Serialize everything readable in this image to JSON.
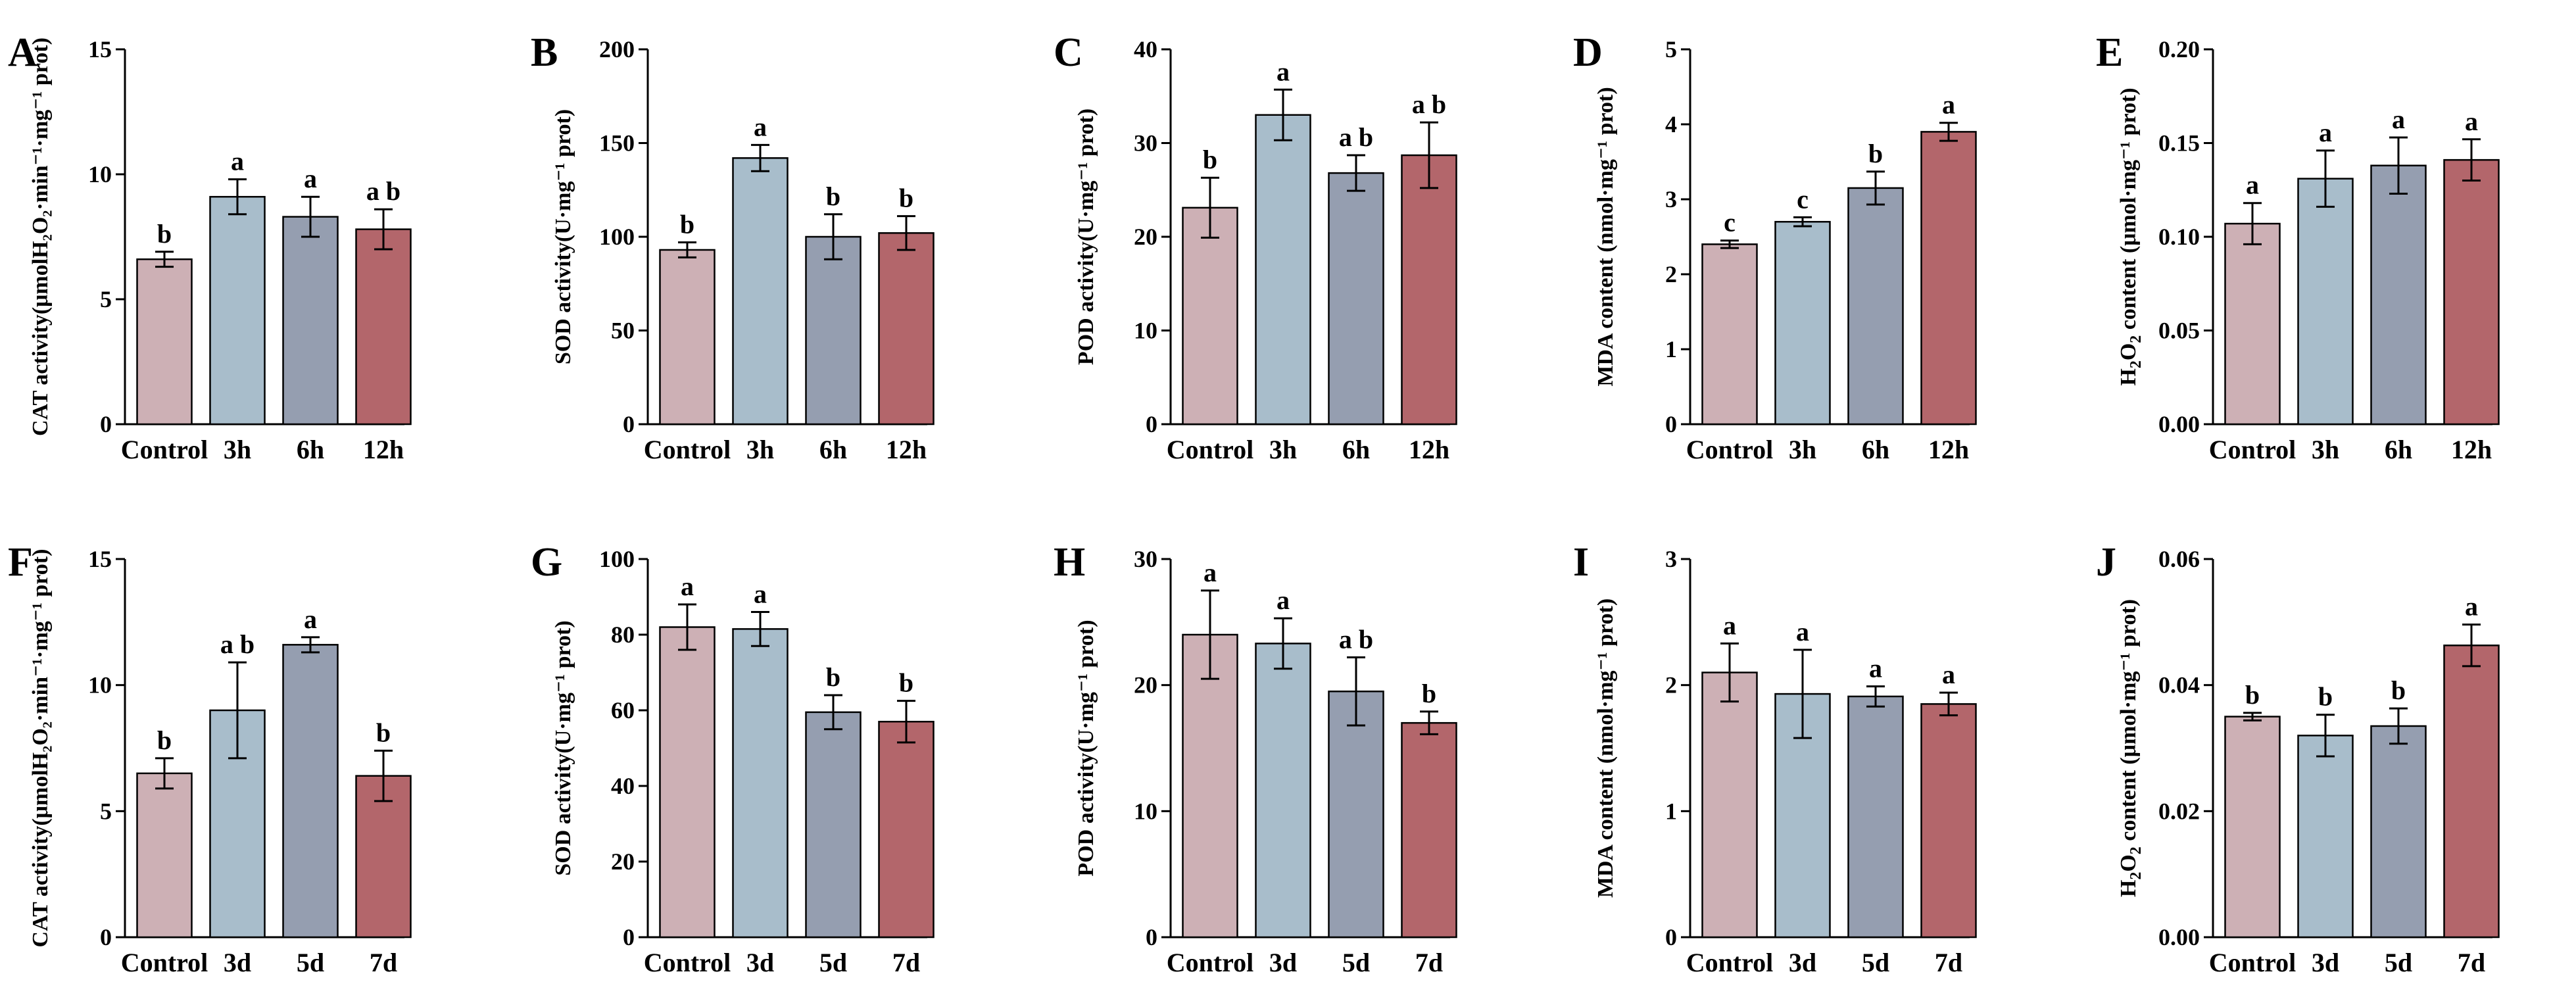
{
  "figure": {
    "colors": [
      "#cdb0b5",
      "#a8bdcb",
      "#959eb0",
      "#b3666b"
    ],
    "edge_color": "#000000"
  },
  "chart_data": [
    {
      "type": "bar",
      "panel": "A",
      "ylabel": "CAT activity(μmolH₂O₂·min⁻¹·mg⁻¹ prot)",
      "categories": [
        "Control",
        "3h",
        "6h",
        "12h"
      ],
      "ylim": [
        0,
        15
      ],
      "yticks": [
        0,
        5,
        10,
        15
      ],
      "ytick_labels": [
        "0",
        "5",
        "10",
        "15"
      ],
      "values": [
        6.6,
        9.1,
        8.3,
        7.8
      ],
      "errors": [
        0.3,
        0.7,
        0.8,
        0.8
      ],
      "significance": [
        "b",
        "a",
        "a",
        "a b"
      ]
    },
    {
      "type": "bar",
      "panel": "B",
      "ylabel": "SOD activity(U·mg⁻¹ prot)",
      "categories": [
        "Control",
        "3h",
        "6h",
        "12h"
      ],
      "ylim": [
        0,
        200
      ],
      "yticks": [
        0,
        50,
        100,
        150,
        200
      ],
      "ytick_labels": [
        "0",
        "50",
        "100",
        "150",
        "200"
      ],
      "values": [
        93,
        142,
        100,
        102
      ],
      "errors": [
        4,
        7,
        12,
        9
      ],
      "significance": [
        "b",
        "a",
        "b",
        "b"
      ]
    },
    {
      "type": "bar",
      "panel": "C",
      "ylabel": "POD activity(U·mg⁻¹ prot)",
      "categories": [
        "Control",
        "3h",
        "6h",
        "12h"
      ],
      "ylim": [
        0,
        40
      ],
      "yticks": [
        0,
        10,
        20,
        30,
        40
      ],
      "ytick_labels": [
        "0",
        "10",
        "20",
        "30",
        "40"
      ],
      "values": [
        23.1,
        33.0,
        26.8,
        28.7
      ],
      "errors": [
        3.2,
        2.7,
        1.9,
        3.5
      ],
      "significance": [
        "b",
        "a",
        "a b",
        "a b"
      ]
    },
    {
      "type": "bar",
      "panel": "D",
      "ylabel": "MDA content (nmol·mg⁻¹ prot)",
      "categories": [
        "Control",
        "3h",
        "6h",
        "12h"
      ],
      "ylim": [
        0,
        5
      ],
      "yticks": [
        0,
        1,
        2,
        3,
        4,
        5
      ],
      "ytick_labels": [
        "0",
        "1",
        "2",
        "3",
        "4",
        "5"
      ],
      "values": [
        2.4,
        2.7,
        3.15,
        3.9
      ],
      "errors": [
        0.05,
        0.06,
        0.22,
        0.12
      ],
      "significance": [
        "c",
        "c",
        "b",
        "a"
      ]
    },
    {
      "type": "bar",
      "panel": "E",
      "ylabel_main": "H",
      "ylabel_sub": "2",
      "ylabel_main2": "O",
      "ylabel_sub2": "2",
      "ylabel_rest": " content (μmol·mg⁻¹ prot)",
      "categories": [
        "Control",
        "3h",
        "6h",
        "12h"
      ],
      "ylim": [
        0,
        0.2
      ],
      "yticks": [
        0,
        0.05,
        0.1,
        0.15,
        0.2
      ],
      "ytick_labels": [
        "0.00",
        "0.05",
        "0.10",
        "0.15",
        "0.20"
      ],
      "values": [
        0.107,
        0.131,
        0.138,
        0.141
      ],
      "errors": [
        0.011,
        0.015,
        0.015,
        0.011
      ],
      "significance": [
        "a",
        "a",
        "a",
        "a"
      ]
    },
    {
      "type": "bar",
      "panel": "F",
      "ylabel": "CAT activity(μmolH₂O₂·min⁻¹·mg⁻¹ prot)",
      "categories": [
        "Control",
        "3d",
        "5d",
        "7d"
      ],
      "ylim": [
        0,
        15
      ],
      "yticks": [
        0,
        5,
        10,
        15
      ],
      "ytick_labels": [
        "0",
        "5",
        "10",
        "15"
      ],
      "values": [
        6.5,
        9.0,
        11.6,
        6.4
      ],
      "errors": [
        0.6,
        1.9,
        0.3,
        1.0
      ],
      "significance": [
        "b",
        "a b",
        "a",
        "b"
      ]
    },
    {
      "type": "bar",
      "panel": "G",
      "ylabel": "SOD activity(U·mg⁻¹ prot)",
      "categories": [
        "Control",
        "3d",
        "5d",
        "7d"
      ],
      "ylim": [
        0,
        100
      ],
      "yticks": [
        0,
        20,
        40,
        60,
        80,
        100
      ],
      "ytick_labels": [
        "0",
        "20",
        "40",
        "60",
        "80",
        "100"
      ],
      "values": [
        82,
        81.5,
        59.5,
        57
      ],
      "errors": [
        6,
        4.5,
        4.5,
        5.5
      ],
      "significance": [
        "a",
        "a",
        "b",
        "b"
      ]
    },
    {
      "type": "bar",
      "panel": "H",
      "ylabel": "POD activity(U·mg⁻¹ prot)",
      "categories": [
        "Control",
        "3d",
        "5d",
        "7d"
      ],
      "ylim": [
        0,
        30
      ],
      "yticks": [
        0,
        10,
        20,
        30
      ],
      "ytick_labels": [
        "0",
        "10",
        "20",
        "30"
      ],
      "values": [
        24.0,
        23.3,
        19.5,
        17.0
      ],
      "errors": [
        3.5,
        2.0,
        2.7,
        0.9
      ],
      "significance": [
        "a",
        "a",
        "a b",
        "b"
      ]
    },
    {
      "type": "bar",
      "panel": "I",
      "ylabel": "MDA content (nmol·mg⁻¹ prot)",
      "categories": [
        "Control",
        "3d",
        "5d",
        "7d"
      ],
      "ylim": [
        0,
        3
      ],
      "yticks": [
        0,
        1,
        2,
        3
      ],
      "ytick_labels": [
        "0",
        "1",
        "2",
        "3"
      ],
      "values": [
        2.1,
        1.93,
        1.91,
        1.85
      ],
      "errors": [
        0.23,
        0.35,
        0.08,
        0.09
      ],
      "significance": [
        "a",
        "a",
        "a",
        "a"
      ]
    },
    {
      "type": "bar",
      "panel": "J",
      "ylabel_main": "H",
      "ylabel_sub": "2",
      "ylabel_main2": "O",
      "ylabel_sub2": "2",
      "ylabel_rest": " content (μmol·mg⁻¹ prot)",
      "categories": [
        "Control",
        "3d",
        "5d",
        "7d"
      ],
      "ylim": [
        0,
        0.06
      ],
      "yticks": [
        0,
        0.02,
        0.04,
        0.06
      ],
      "ytick_labels": [
        "0.00",
        "0.02",
        "0.04",
        "0.06"
      ],
      "values": [
        0.035,
        0.032,
        0.0335,
        0.0463
      ],
      "errors": [
        0.0006,
        0.0033,
        0.0028,
        0.0033
      ],
      "significance": [
        "b",
        "b",
        "b",
        "a"
      ]
    }
  ]
}
